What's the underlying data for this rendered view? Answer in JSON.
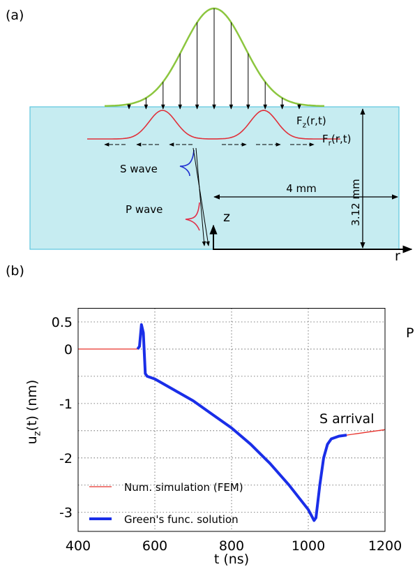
{
  "panel_a": {
    "label": "(a)",
    "fz": {
      "main": "F",
      "sub": "z",
      "rest": "(r,t)"
    },
    "fr": {
      "main": "F",
      "sub": "r",
      "rest": "(r,t)"
    },
    "s_wave": "S wave",
    "p_wave": "P wave",
    "depth": "3.12 mm",
    "distance": "4 mm",
    "z_axis": "z",
    "r_axis": "r"
  },
  "panel_b_label": "(b)",
  "chart_data": {
    "type": "line",
    "xlabel": "t (ns)",
    "ylabel": {
      "main": "u",
      "sub": "z",
      "rest": "(t) (nm)"
    },
    "annotations": [
      "P arrival",
      "S arrival"
    ],
    "xlim": [
      400,
      1200
    ],
    "xticks": [
      400,
      600,
      800,
      1000,
      1200
    ],
    "xgrid": [
      600,
      800,
      1000
    ],
    "ylim": [
      -3.35,
      0.75
    ],
    "yticks": [
      0.5,
      0,
      -1,
      -2,
      -3
    ],
    "ygrid": [
      0.5,
      0,
      -0.5,
      -1,
      -1.5,
      -2,
      -2.5,
      -3
    ],
    "grid": true,
    "legend": "lower left",
    "series": [
      {
        "name": "Num. simulation (FEM)",
        "color": "#e8302a",
        "width": 1.3,
        "x": [
          400,
          555,
          560,
          565,
          570,
          575,
          580,
          600,
          650,
          700,
          750,
          800,
          850,
          900,
          950,
          1000,
          1015,
          1020,
          1030,
          1040,
          1050,
          1060,
          1080,
          1100,
          1150,
          1200
        ],
        "values": [
          0,
          0,
          0.05,
          0.45,
          0.3,
          -0.45,
          -0.5,
          -0.55,
          -0.75,
          -0.95,
          -1.2,
          -1.45,
          -1.75,
          -2.1,
          -2.5,
          -2.95,
          -3.15,
          -3.1,
          -2.5,
          -2.0,
          -1.75,
          -1.65,
          -1.6,
          -1.58,
          -1.53,
          -1.48
        ]
      },
      {
        "name": "Green's func. solution",
        "color": "#1a2ee8",
        "width": 4,
        "x": [
          555,
          560,
          565,
          570,
          575,
          580,
          600,
          650,
          700,
          750,
          800,
          850,
          900,
          950,
          1000,
          1015,
          1020,
          1030,
          1040,
          1050,
          1060,
          1080,
          1100
        ],
        "values": [
          0,
          0.05,
          0.45,
          0.3,
          -0.45,
          -0.5,
          -0.55,
          -0.75,
          -0.95,
          -1.2,
          -1.45,
          -1.75,
          -2.1,
          -2.5,
          -2.95,
          -3.15,
          -3.1,
          -2.5,
          -2.0,
          -1.75,
          -1.65,
          -1.6,
          -1.58
        ]
      }
    ]
  }
}
